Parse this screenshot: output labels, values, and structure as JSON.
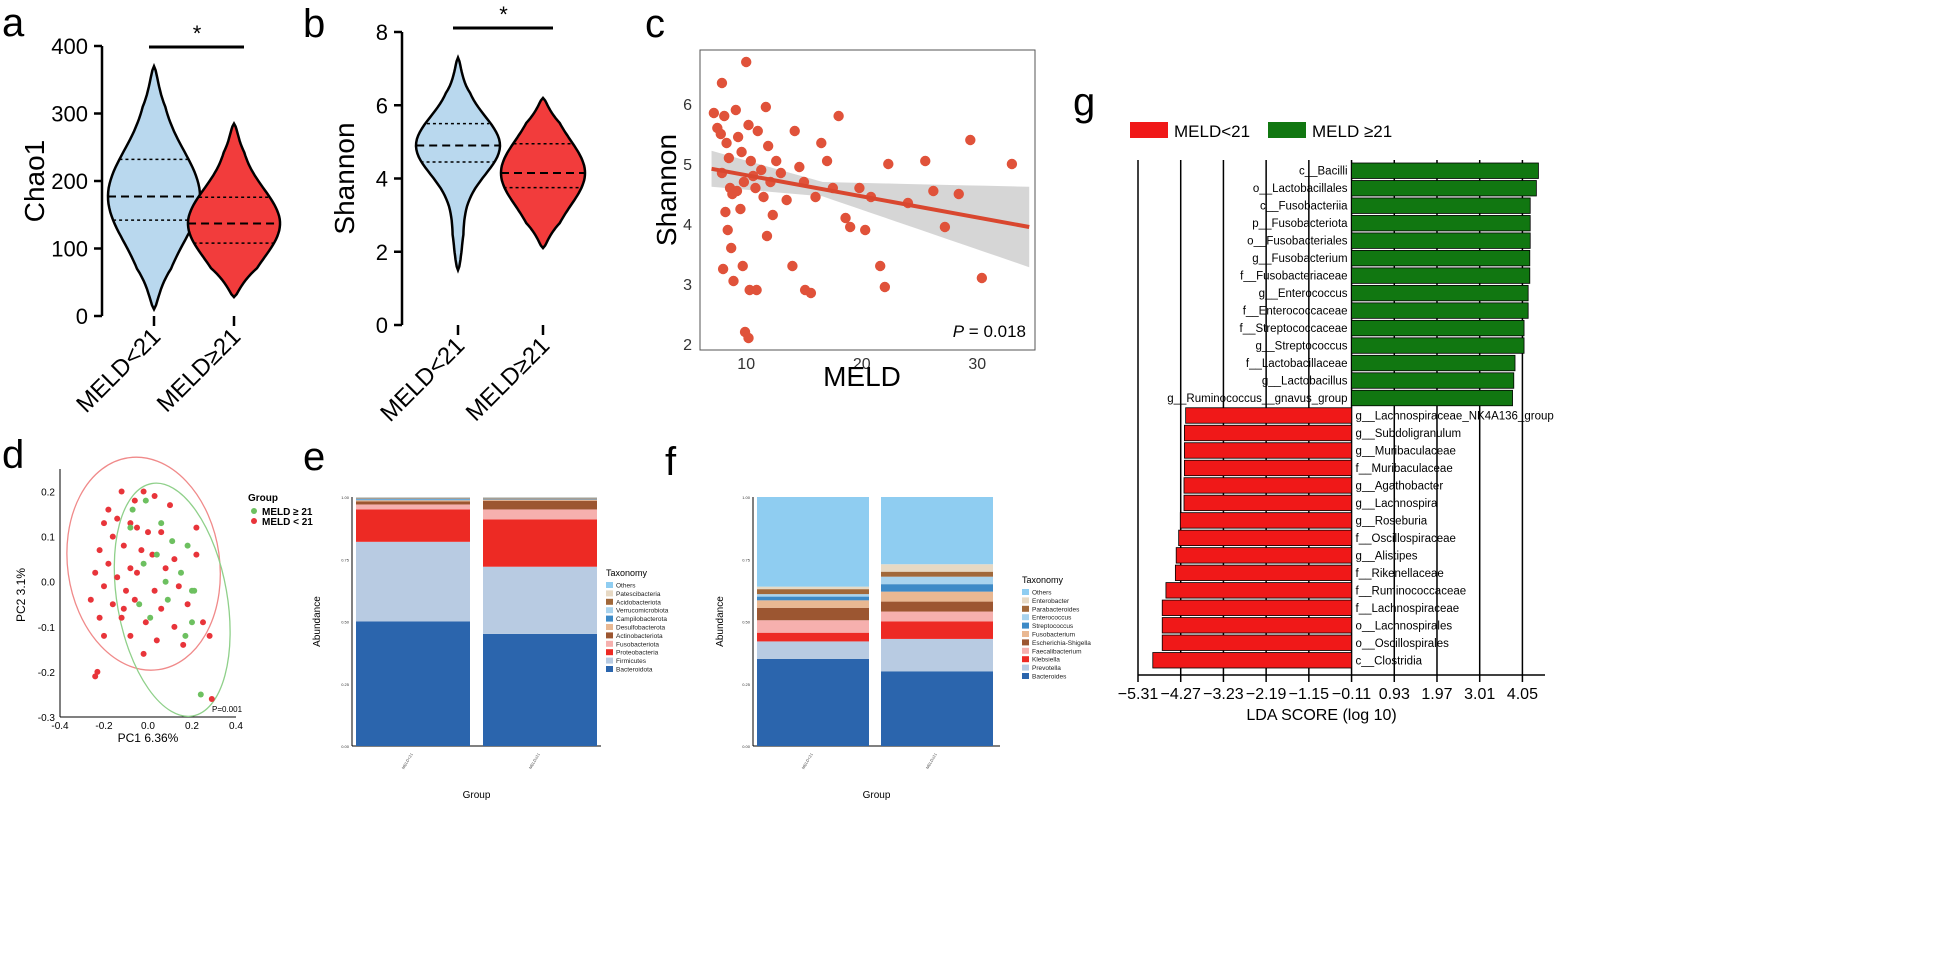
{
  "colors": {
    "blue_violin": "#b9d8ee",
    "red_violin": "#f23c3c",
    "scatter_red": "#e0523a",
    "line_red": "#d9472f",
    "ci_grey": "#cfcfcf",
    "lda_green": "#117711",
    "lda_red": "#f01818",
    "pcoa_green": "#6dc060",
    "pcoa_red": "#e8343a"
  },
  "chart_data": [
    {
      "panel": "a",
      "type": "violin",
      "ylabel": "Chao1",
      "ylim": [
        0,
        400
      ],
      "yticks": [
        0,
        100,
        200,
        300,
        400
      ],
      "categories": [
        "MELD<21",
        "MELD≥21"
      ],
      "violins": [
        {
          "name": "MELD<21",
          "min": 10,
          "max": 370,
          "median": 177,
          "q1": 142,
          "q3": 232
        },
        {
          "name": "MELD≥21",
          "min": 28,
          "max": 285,
          "median": 137,
          "q1": 108,
          "q3": 176
        }
      ],
      "significance": "*"
    },
    {
      "panel": "b",
      "type": "violin",
      "ylabel": "Shannon",
      "ylim": [
        0,
        8
      ],
      "yticks": [
        0,
        2,
        4,
        6,
        8
      ],
      "categories": [
        "MELD<21",
        "MELD≥21"
      ],
      "violins": [
        {
          "name": "MELD<21",
          "min": 1.5,
          "max": 7.3,
          "median": 4.9,
          "q1": 4.45,
          "q3": 5.5
        },
        {
          "name": "MELD≥21",
          "min": 2.1,
          "max": 6.2,
          "median": 4.15,
          "q1": 3.75,
          "q3": 4.95
        }
      ],
      "significance": "*"
    },
    {
      "panel": "c",
      "type": "scatter",
      "xlabel": "MELD",
      "ylabel": "Shannon",
      "xlim": [
        6,
        35
      ],
      "ylim": [
        1.9,
        6.9
      ],
      "xticks": [
        10,
        20,
        30
      ],
      "yticks": [
        2,
        3,
        4,
        5,
        6
      ],
      "p_label": "P",
      "p_value": "= 0.018",
      "fit": {
        "x0": 7,
        "y0": 4.92,
        "x1": 34.5,
        "y1": 3.95,
        "ci_left": 0.3,
        "ci_mid": 0.12,
        "ci_right": 0.67
      },
      "points": [
        [
          7.2,
          5.85
        ],
        [
          7.5,
          5.6
        ],
        [
          7.8,
          5.5
        ],
        [
          7.9,
          6.35
        ],
        [
          8.1,
          5.8
        ],
        [
          8.3,
          5.35
        ],
        [
          8.5,
          5.1
        ],
        [
          8.6,
          4.6
        ],
        [
          8.8,
          4.5
        ],
        [
          7.9,
          4.85
        ],
        [
          8.2,
          4.2
        ],
        [
          8.4,
          3.9
        ],
        [
          8.7,
          3.6
        ],
        [
          8.0,
          3.25
        ],
        [
          8.9,
          3.05
        ],
        [
          9.1,
          5.9
        ],
        [
          9.3,
          5.45
        ],
        [
          9.6,
          5.2
        ],
        [
          9.8,
          4.7
        ],
        [
          9.2,
          4.55
        ],
        [
          9.5,
          4.25
        ],
        [
          9.7,
          3.3
        ],
        [
          10.0,
          6.7
        ],
        [
          10.2,
          5.65
        ],
        [
          10.4,
          5.05
        ],
        [
          10.6,
          4.8
        ],
        [
          10.8,
          4.6
        ],
        [
          11.0,
          5.55
        ],
        [
          11.3,
          4.9
        ],
        [
          11.5,
          4.45
        ],
        [
          11.7,
          5.95
        ],
        [
          11.9,
          5.3
        ],
        [
          12.1,
          4.7
        ],
        [
          12.3,
          4.15
        ],
        [
          10.3,
          2.9
        ],
        [
          10.9,
          2.9
        ],
        [
          9.9,
          2.2
        ],
        [
          10.2,
          2.1
        ],
        [
          11.8,
          3.8
        ],
        [
          12.6,
          5.05
        ],
        [
          13.0,
          4.85
        ],
        [
          13.5,
          4.4
        ],
        [
          14.2,
          5.55
        ],
        [
          14.6,
          4.95
        ],
        [
          15.0,
          4.7
        ],
        [
          14.0,
          3.3
        ],
        [
          15.1,
          2.9
        ],
        [
          15.6,
          2.85
        ],
        [
          16.0,
          4.45
        ],
        [
          16.5,
          5.35
        ],
        [
          17.0,
          5.05
        ],
        [
          17.5,
          4.6
        ],
        [
          18.0,
          5.8
        ],
        [
          18.6,
          4.1
        ],
        [
          19.0,
          3.95
        ],
        [
          19.8,
          4.6
        ],
        [
          20.3,
          3.9
        ],
        [
          20.8,
          4.45
        ],
        [
          21.6,
          3.3
        ],
        [
          22.0,
          2.95
        ],
        [
          22.3,
          5.0
        ],
        [
          24.0,
          4.35
        ],
        [
          25.5,
          5.05
        ],
        [
          26.2,
          4.55
        ],
        [
          27.2,
          3.95
        ],
        [
          28.4,
          4.5
        ],
        [
          29.4,
          5.4
        ],
        [
          30.4,
          3.1
        ],
        [
          33.0,
          5.0
        ]
      ]
    },
    {
      "panel": "d",
      "type": "scatter",
      "title": "",
      "xlabel": "PC1 6.36%",
      "ylabel": "PC2 3.1%",
      "xlim": [
        -0.4,
        0.4
      ],
      "ylim": [
        -0.3,
        0.25
      ],
      "xticks": [
        -0.4,
        -0.2,
        0.0,
        0.2,
        0.4
      ],
      "xtick_labels": [
        "-0.4",
        "-0.2",
        "0.0",
        "0.2",
        "0.4"
      ],
      "yticks": [
        -0.3,
        -0.2,
        -0.1,
        0.0,
        0.1,
        0.2
      ],
      "ytick_labels": [
        "-0.3",
        "-0.2",
        "-0.1",
        "0.0",
        "0.1",
        "0.2"
      ],
      "legend_title": "Group",
      "p_label": "P=0.001",
      "series": [
        {
          "name": "MELD ≥ 21",
          "points": [
            [
              -0.07,
              0.16
            ],
            [
              -0.01,
              0.18
            ],
            [
              0.06,
              0.13
            ],
            [
              0.11,
              0.09
            ],
            [
              0.18,
              0.08
            ],
            [
              0.04,
              0.06
            ],
            [
              -0.02,
              0.04
            ],
            [
              0.15,
              0.02
            ],
            [
              0.2,
              -0.02
            ],
            [
              0.09,
              -0.04
            ],
            [
              -0.04,
              -0.05
            ],
            [
              0.01,
              -0.08
            ],
            [
              0.2,
              -0.09
            ],
            [
              0.17,
              -0.12
            ],
            [
              0.24,
              -0.25
            ],
            [
              0.21,
              -0.02
            ],
            [
              0.08,
              0.0
            ],
            [
              -0.08,
              0.12
            ]
          ]
        },
        {
          "name": "MELD < 21",
          "points": [
            [
              -0.12,
              0.2
            ],
            [
              -0.06,
              0.18
            ],
            [
              -0.02,
              0.2
            ],
            [
              0.03,
              0.19
            ],
            [
              0.1,
              0.17
            ],
            [
              -0.14,
              0.14
            ],
            [
              -0.2,
              0.13
            ],
            [
              -0.08,
              0.13
            ],
            [
              -0.05,
              0.12
            ],
            [
              0.0,
              0.11
            ],
            [
              0.06,
              0.11
            ],
            [
              -0.16,
              0.1
            ],
            [
              -0.11,
              0.08
            ],
            [
              -0.03,
              0.07
            ],
            [
              0.02,
              0.06
            ],
            [
              -0.22,
              0.07
            ],
            [
              -0.18,
              0.04
            ],
            [
              -0.08,
              0.03
            ],
            [
              0.12,
              0.05
            ],
            [
              0.22,
              0.06
            ],
            [
              -0.24,
              0.02
            ],
            [
              -0.14,
              0.01
            ],
            [
              -0.05,
              0.02
            ],
            [
              0.08,
              0.03
            ],
            [
              -0.2,
              -0.01
            ],
            [
              -0.1,
              -0.02
            ],
            [
              0.03,
              -0.02
            ],
            [
              0.14,
              -0.01
            ],
            [
              -0.26,
              -0.04
            ],
            [
              -0.16,
              -0.05
            ],
            [
              -0.06,
              -0.04
            ],
            [
              0.06,
              -0.06
            ],
            [
              0.18,
              -0.05
            ],
            [
              -0.22,
              -0.08
            ],
            [
              -0.12,
              -0.08
            ],
            [
              -0.01,
              -0.09
            ],
            [
              0.12,
              -0.1
            ],
            [
              0.25,
              -0.09
            ],
            [
              -0.2,
              -0.12
            ],
            [
              -0.08,
              -0.12
            ],
            [
              0.04,
              -0.13
            ],
            [
              0.16,
              -0.14
            ],
            [
              -0.23,
              -0.2
            ],
            [
              -0.24,
              -0.21
            ],
            [
              -0.02,
              -0.16
            ],
            [
              0.28,
              -0.12
            ],
            [
              0.29,
              -0.26
            ],
            [
              0.22,
              0.12
            ],
            [
              -0.11,
              -0.06
            ],
            [
              -0.18,
              0.16
            ]
          ]
        }
      ]
    },
    {
      "panel": "e",
      "type": "stacked_bar",
      "xlabel": "Group",
      "ylabel": "Abundance",
      "categories": [
        "MELD<21",
        "MELD≥21"
      ],
      "yticks": [
        0,
        0.25,
        0.5,
        0.75,
        1.0
      ],
      "ytick_labels": [
        "0.00",
        "0.25",
        "0.50",
        "0.75",
        "1.00"
      ],
      "legend_title": "Taxonomy",
      "series": [
        {
          "name": "Bacteroidota",
          "color": "#2b65ad",
          "values": [
            0.5,
            0.45
          ]
        },
        {
          "name": "Firmicutes",
          "color": "#b8cbe2",
          "values": [
            0.32,
            0.27
          ]
        },
        {
          "name": "Proteobacteria",
          "color": "#ed2a24",
          "values": [
            0.13,
            0.19
          ]
        },
        {
          "name": "Fusobacteriota",
          "color": "#f6b0ae",
          "values": [
            0.02,
            0.04
          ]
        },
        {
          "name": "Actinobacteriota",
          "color": "#9c5631",
          "values": [
            0.012,
            0.035
          ]
        },
        {
          "name": "Desulfobacterota",
          "color": "#e9b892",
          "values": [
            0.005,
            0.005
          ]
        },
        {
          "name": "Campilobacterota",
          "color": "#3d8ac7",
          "values": [
            0.004,
            0.002
          ]
        },
        {
          "name": "Verrucomicrobiota",
          "color": "#a8d3ee",
          "values": [
            0.003,
            0.002
          ]
        },
        {
          "name": "Acidobacteriota",
          "color": "#a1683a",
          "values": [
            0.003,
            0.003
          ]
        },
        {
          "name": "Patescibacteria",
          "color": "#e7d9c4",
          "values": [
            0.002,
            0.002
          ]
        },
        {
          "name": "Others",
          "color": "#8fcdf1",
          "values": [
            0.001,
            0.001
          ]
        }
      ]
    },
    {
      "panel": "f",
      "type": "stacked_bar",
      "xlabel": "Group",
      "ylabel": "Abundance",
      "categories": [
        "MELD<21",
        "MELD≥21"
      ],
      "yticks": [
        0,
        0.25,
        0.5,
        0.75,
        1.0
      ],
      "ytick_labels": [
        "0.00",
        "0.25",
        "0.50",
        "0.75",
        "1.00"
      ],
      "legend_title": "Taxonomy",
      "series": [
        {
          "name": "Bacteroides",
          "color": "#2b65ad",
          "values": [
            0.35,
            0.3
          ]
        },
        {
          "name": "Prevotella",
          "color": "#b8cbe2",
          "values": [
            0.07,
            0.13
          ]
        },
        {
          "name": "Klebsiella",
          "color": "#ed2a24",
          "values": [
            0.035,
            0.07
          ]
        },
        {
          "name": "Faecalibacterium",
          "color": "#f6b0ae",
          "values": [
            0.05,
            0.04
          ]
        },
        {
          "name": "Escherichia-Shigella",
          "color": "#9c5631",
          "values": [
            0.05,
            0.04
          ]
        },
        {
          "name": "Fusobacterium",
          "color": "#e9b892",
          "values": [
            0.03,
            0.04
          ]
        },
        {
          "name": "Streptococcus",
          "color": "#3d8ac7",
          "values": [
            0.015,
            0.03
          ]
        },
        {
          "name": "Enterococcus",
          "color": "#a8d3ee",
          "values": [
            0.01,
            0.03
          ]
        },
        {
          "name": "Parabacteroides",
          "color": "#a1683a",
          "values": [
            0.02,
            0.02
          ]
        },
        {
          "name": "Enterobacter",
          "color": "#e7d9c4",
          "values": [
            0.01,
            0.03
          ]
        },
        {
          "name": "Others",
          "color": "#8fcdf1",
          "values": [
            0.36,
            0.27
          ]
        }
      ]
    },
    {
      "panel": "g",
      "type": "bar",
      "orientation": "horizontal",
      "xlabel": "LDA SCORE (log 10)",
      "xlim": [
        -5.31,
        4.6
      ],
      "xticks": [
        -5.31,
        -4.27,
        -3.23,
        -2.19,
        -1.15,
        -0.11,
        0.93,
        1.97,
        3.01,
        4.05
      ],
      "xtick_labels": [
        "−5.31",
        "−4.27",
        "−3.23",
        "−2.19",
        "−1.15",
        "−0.11",
        "0.93",
        "1.97",
        "3.01",
        "4.05"
      ],
      "legend": [
        {
          "name": "MELD<21",
          "color": "#f01818"
        },
        {
          "name": "MELD ≥21",
          "color": "#117711"
        }
      ],
      "bars": [
        {
          "label": "c__Bacilli",
          "value": 4.55,
          "group": "MELD ≥21"
        },
        {
          "label": "o__Lactobacillales",
          "value": 4.5,
          "group": "MELD ≥21"
        },
        {
          "label": "c__Fusobacteriia",
          "value": 4.35,
          "group": "MELD ≥21"
        },
        {
          "label": "p__Fusobacteriota",
          "value": 4.35,
          "group": "MELD ≥21"
        },
        {
          "label": "o__Fusobacteriales",
          "value": 4.35,
          "group": "MELD ≥21"
        },
        {
          "label": "g__Fusobacterium",
          "value": 4.34,
          "group": "MELD ≥21"
        },
        {
          "label": "f__Fusobacteriaceae",
          "value": 4.34,
          "group": "MELD ≥21"
        },
        {
          "label": "g__Enterococcus",
          "value": 4.3,
          "group": "MELD ≥21"
        },
        {
          "label": "f__Enterococcaceae",
          "value": 4.3,
          "group": "MELD ≥21"
        },
        {
          "label": "f__Streptococcaceae",
          "value": 4.2,
          "group": "MELD ≥21"
        },
        {
          "label": "g__Streptococcus",
          "value": 4.2,
          "group": "MELD ≥21"
        },
        {
          "label": "f__Lactobacillaceae",
          "value": 3.98,
          "group": "MELD ≥21"
        },
        {
          "label": "g__Lactobacillus",
          "value": 3.95,
          "group": "MELD ≥21"
        },
        {
          "label": "g__Ruminococcus__gnavus_group",
          "value": 3.92,
          "group": "MELD ≥21"
        },
        {
          "label": "g__Lachnospiraceae_NK4A136_group",
          "value": -4.04,
          "group": "MELD<21"
        },
        {
          "label": "g__Subdoligranulum",
          "value": -4.07,
          "group": "MELD<21"
        },
        {
          "label": "g__Muribaculaceae",
          "value": -4.07,
          "group": "MELD<21"
        },
        {
          "label": "f__Muribaculaceae",
          "value": -4.07,
          "group": "MELD<21"
        },
        {
          "label": "g__Agathobacter",
          "value": -4.08,
          "group": "MELD<21"
        },
        {
          "label": "g__Lachnospira",
          "value": -4.08,
          "group": "MELD<21"
        },
        {
          "label": "g__Roseburia",
          "value": -4.17,
          "group": "MELD<21"
        },
        {
          "label": "f__Oscillospiraceae",
          "value": -4.21,
          "group": "MELD<21"
        },
        {
          "label": "g__Alistipes",
          "value": -4.27,
          "group": "MELD<21"
        },
        {
          "label": "f__Rikenellaceae",
          "value": -4.29,
          "group": "MELD<21"
        },
        {
          "label": "f__Ruminococcaceae",
          "value": -4.52,
          "group": "MELD<21"
        },
        {
          "label": "f__Lachnospiraceae",
          "value": -4.61,
          "group": "MELD<21"
        },
        {
          "label": "o__Lachnospirales",
          "value": -4.61,
          "group": "MELD<21"
        },
        {
          "label": "o__Oscillospirales",
          "value": -4.61,
          "group": "MELD<21"
        },
        {
          "label": "c__Clostridia",
          "value": -4.84,
          "group": "MELD<21"
        }
      ]
    }
  ]
}
